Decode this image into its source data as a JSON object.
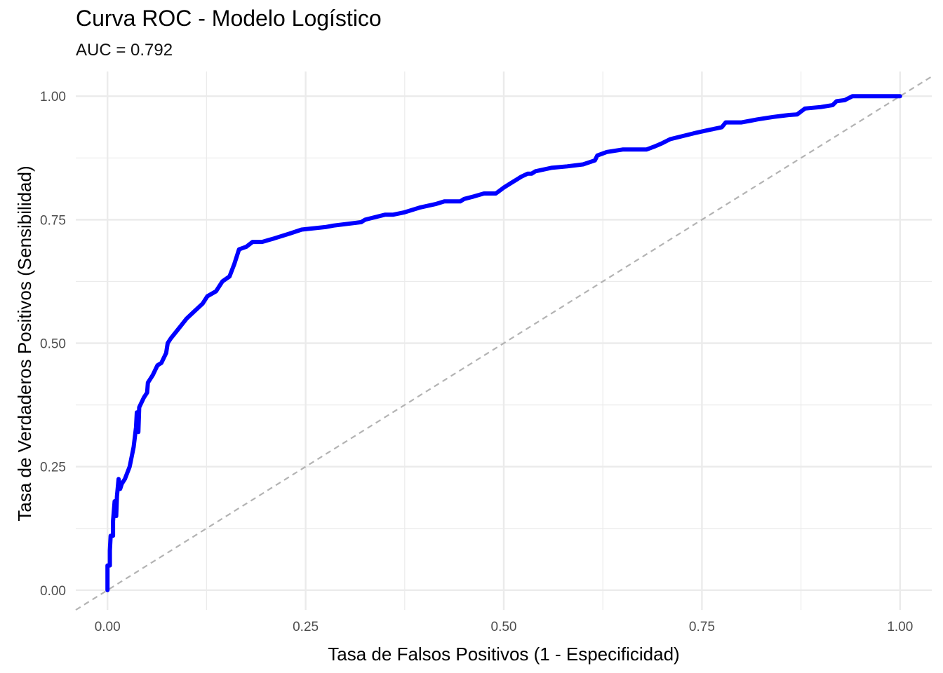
{
  "chart_data": {
    "type": "line",
    "title": "Curva ROC - Modelo Logístico",
    "subtitle": "AUC = 0.792",
    "xlabel": "Tasa de Falsos Positivos (1 - Especificidad)",
    "ylabel": "Tasa de Verdaderos Positivos (Sensibilidad)",
    "xlim": [
      -0.04,
      1.04
    ],
    "ylim": [
      -0.04,
      1.05
    ],
    "x_ticks": [
      "0.00",
      "0.25",
      "0.50",
      "0.75",
      "1.00"
    ],
    "y_ticks": [
      "0.00",
      "0.25",
      "0.50",
      "0.75",
      "1.00"
    ],
    "grid": true,
    "legend": "none",
    "colors": {
      "roc": "#0000ff",
      "diagonal": "#b3b3b3",
      "grid": "#ebebeb"
    },
    "series": [
      {
        "points": [
          [
            0.0,
            0.0
          ],
          [
            0.0,
            0.05
          ],
          [
            0.003,
            0.05
          ],
          [
            0.003,
            0.08
          ],
          [
            0.004,
            0.11
          ],
          [
            0.007,
            0.11
          ],
          [
            0.007,
            0.14
          ],
          [
            0.009,
            0.18
          ],
          [
            0.011,
            0.15
          ],
          [
            0.012,
            0.19
          ],
          [
            0.014,
            0.225
          ],
          [
            0.016,
            0.205
          ],
          [
            0.018,
            0.215
          ],
          [
            0.022,
            0.225
          ],
          [
            0.028,
            0.25
          ],
          [
            0.033,
            0.29
          ],
          [
            0.036,
            0.33
          ],
          [
            0.037,
            0.36
          ],
          [
            0.039,
            0.32
          ],
          [
            0.04,
            0.37
          ],
          [
            0.046,
            0.39
          ],
          [
            0.05,
            0.4
          ],
          [
            0.051,
            0.42
          ],
          [
            0.057,
            0.435
          ],
          [
            0.063,
            0.455
          ],
          [
            0.068,
            0.46
          ],
          [
            0.074,
            0.48
          ],
          [
            0.076,
            0.5
          ],
          [
            0.08,
            0.51
          ],
          [
            0.09,
            0.53
          ],
          [
            0.1,
            0.55
          ],
          [
            0.11,
            0.565
          ],
          [
            0.12,
            0.58
          ],
          [
            0.126,
            0.595
          ],
          [
            0.137,
            0.605
          ],
          [
            0.145,
            0.625
          ],
          [
            0.154,
            0.635
          ],
          [
            0.16,
            0.66
          ],
          [
            0.166,
            0.69
          ],
          [
            0.175,
            0.695
          ],
          [
            0.183,
            0.705
          ],
          [
            0.195,
            0.705
          ],
          [
            0.21,
            0.712
          ],
          [
            0.23,
            0.722
          ],
          [
            0.245,
            0.73
          ],
          [
            0.275,
            0.735
          ],
          [
            0.285,
            0.738
          ],
          [
            0.32,
            0.745
          ],
          [
            0.325,
            0.75
          ],
          [
            0.35,
            0.76
          ],
          [
            0.36,
            0.76
          ],
          [
            0.375,
            0.765
          ],
          [
            0.385,
            0.77
          ],
          [
            0.395,
            0.775
          ],
          [
            0.415,
            0.782
          ],
          [
            0.425,
            0.787
          ],
          [
            0.445,
            0.787
          ],
          [
            0.45,
            0.792
          ],
          [
            0.462,
            0.797
          ],
          [
            0.475,
            0.803
          ],
          [
            0.49,
            0.803
          ],
          [
            0.5,
            0.815
          ],
          [
            0.512,
            0.827
          ],
          [
            0.522,
            0.837
          ],
          [
            0.53,
            0.843
          ],
          [
            0.535,
            0.843
          ],
          [
            0.54,
            0.848
          ],
          [
            0.56,
            0.855
          ],
          [
            0.58,
            0.858
          ],
          [
            0.6,
            0.862
          ],
          [
            0.615,
            0.87
          ],
          [
            0.618,
            0.88
          ],
          [
            0.63,
            0.887
          ],
          [
            0.65,
            0.892
          ],
          [
            0.68,
            0.892
          ],
          [
            0.69,
            0.898
          ],
          [
            0.7,
            0.905
          ],
          [
            0.71,
            0.913
          ],
          [
            0.74,
            0.925
          ],
          [
            0.76,
            0.932
          ],
          [
            0.775,
            0.937
          ],
          [
            0.78,
            0.947
          ],
          [
            0.79,
            0.947
          ],
          [
            0.8,
            0.947
          ],
          [
            0.81,
            0.95
          ],
          [
            0.82,
            0.953
          ],
          [
            0.84,
            0.958
          ],
          [
            0.86,
            0.962
          ],
          [
            0.87,
            0.963
          ],
          [
            0.88,
            0.975
          ],
          [
            0.9,
            0.978
          ],
          [
            0.915,
            0.982
          ],
          [
            0.92,
            0.99
          ],
          [
            0.93,
            0.992
          ],
          [
            0.94,
            1.0
          ],
          [
            0.97,
            1.0
          ],
          [
            1.0,
            1.0
          ]
        ]
      },
      {
        "style": "dashed",
        "points": [
          [
            -0.04,
            -0.04
          ],
          [
            1.04,
            1.04
          ]
        ]
      }
    ]
  }
}
